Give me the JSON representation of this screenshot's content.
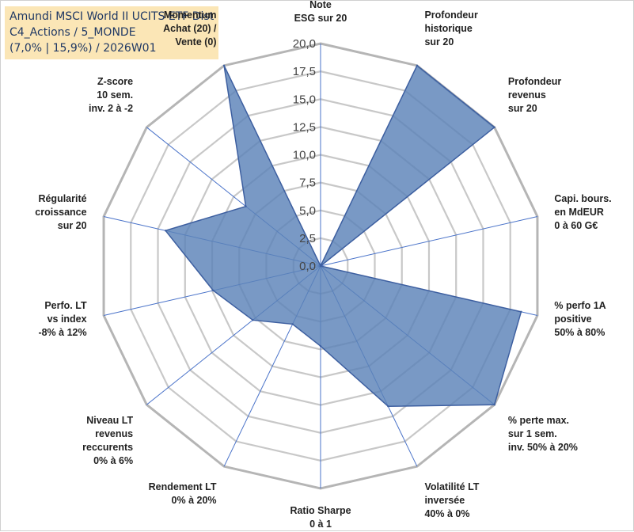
{
  "title": {
    "line1": "Amundi MSCI World II UCITS ETF Dist",
    "line2": "C4_Actions / 5_MONDE",
    "line3": "(7,0% | 15,9%) / 2026W01"
  },
  "chart_data": {
    "type": "radar",
    "range": [
      0,
      20
    ],
    "tick_labels": [
      "0,0",
      "2,5",
      "5,0",
      "7,5",
      "10,0",
      "12,5",
      "15,0",
      "17,5",
      "20,0"
    ],
    "grid_levels": [
      2.5,
      5,
      7.5,
      10,
      12.5,
      15,
      17.5,
      20
    ],
    "colors": {
      "fill": "#5b82b8",
      "stroke": "#3d5fa0",
      "grid": "#c8c8c8",
      "outer_grid": "#b5b5b5",
      "spoke": "#4a73c9"
    },
    "axes": [
      {
        "label": [
          "Note",
          "ESG sur 20"
        ],
        "value": 0
      },
      {
        "label": [
          "Profondeur",
          "historique",
          "sur 20"
        ],
        "value": 20
      },
      {
        "label": [
          "Profondeur",
          "revenus",
          "sur 20"
        ],
        "value": 20
      },
      {
        "label": [
          "Capi. bours.",
          "en MdEUR",
          "0 à 60 G€"
        ],
        "value": 0
      },
      {
        "label": [
          "% perfo 1A",
          "positive",
          "50% à 80%"
        ],
        "value": 18.5
      },
      {
        "label": [
          "% perte max.",
          "sur 1 sem.",
          "inv. 50% à 20%"
        ],
        "value": 20
      },
      {
        "label": [
          "Volatilité LT",
          "inversée",
          "40% à 0%"
        ],
        "value": 14
      },
      {
        "label": [
          "Ratio Sharpe",
          "0 à 1"
        ],
        "value": 7.2
      },
      {
        "label": [
          "Rendement LT",
          "0% à 20%"
        ],
        "value": 5.8
      },
      {
        "label": [
          "Niveau LT",
          "revenus",
          "reccurents",
          "0% à 6%"
        ],
        "value": 7.8
      },
      {
        "label": [
          "Perfo. LT",
          "vs index",
          "-8% à 12%"
        ],
        "value": 9.9
      },
      {
        "label": [
          "Régularité",
          "croissance",
          "sur 20"
        ],
        "value": 14.3
      },
      {
        "label": [
          "Z-score",
          "10 sem.",
          "inv. 2 à -2"
        ],
        "value": 8.6
      },
      {
        "label": [
          "Momentum",
          "Achat (20) /",
          "Vente (0)"
        ],
        "value": 20
      }
    ]
  }
}
